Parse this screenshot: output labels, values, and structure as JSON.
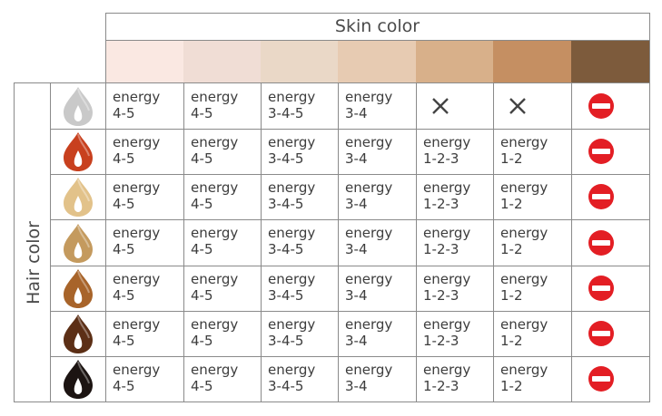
{
  "skin_header": "Skin color",
  "hair_header": "Hair color",
  "skin_colors": [
    "#fae8e2",
    "#f0ddd5",
    "#ead8c7",
    "#e7cbb2",
    "#d8b08a",
    "#c58f62",
    "#7d5b3c"
  ],
  "hair_rows": [
    {
      "hair": "gray",
      "swatch": "#c9c9c9",
      "cells": [
        [
          "energy",
          "4-5"
        ],
        [
          "energy",
          "4-5"
        ],
        [
          "energy",
          "3-4-5"
        ],
        [
          "energy",
          "3-4"
        ],
        "not-suitable",
        "not-suitable",
        "no-entry"
      ]
    },
    {
      "hair": "red",
      "swatch": "#c8401e",
      "cells": [
        [
          "energy",
          "4-5"
        ],
        [
          "energy",
          "4-5"
        ],
        [
          "energy",
          "3-4-5"
        ],
        [
          "energy",
          "3-4"
        ],
        [
          "energy",
          "1-2-3"
        ],
        [
          "energy",
          "1-2"
        ],
        "no-entry"
      ]
    },
    {
      "hair": "blonde",
      "swatch": "#e2c28a",
      "cells": [
        [
          "energy",
          "4-5"
        ],
        [
          "energy",
          "4-5"
        ],
        [
          "energy",
          "3-4-5"
        ],
        [
          "energy",
          "3-4"
        ],
        [
          "energy",
          "1-2-3"
        ],
        [
          "energy",
          "1-2"
        ],
        "no-entry"
      ]
    },
    {
      "hair": "dark-blonde",
      "swatch": "#c49a5e",
      "cells": [
        [
          "energy",
          "4-5"
        ],
        [
          "energy",
          "4-5"
        ],
        [
          "energy",
          "3-4-5"
        ],
        [
          "energy",
          "3-4"
        ],
        [
          "energy",
          "1-2-3"
        ],
        [
          "energy",
          "1-2"
        ],
        "no-entry"
      ]
    },
    {
      "hair": "light-brown",
      "swatch": "#a8642a",
      "cells": [
        [
          "energy",
          "4-5"
        ],
        [
          "energy",
          "4-5"
        ],
        [
          "energy",
          "3-4-5"
        ],
        [
          "energy",
          "3-4"
        ],
        [
          "energy",
          "1-2-3"
        ],
        [
          "energy",
          "1-2"
        ],
        "no-entry"
      ]
    },
    {
      "hair": "brown",
      "swatch": "#5c2f16",
      "cells": [
        [
          "energy",
          "4-5"
        ],
        [
          "energy",
          "4-5"
        ],
        [
          "energy",
          "3-4-5"
        ],
        [
          "energy",
          "3-4"
        ],
        [
          "energy",
          "1-2-3"
        ],
        [
          "energy",
          "1-2"
        ],
        "no-entry"
      ]
    },
    {
      "hair": "black",
      "swatch": "#1c1412",
      "cells": [
        [
          "energy",
          "4-5"
        ],
        [
          "energy",
          "4-5"
        ],
        [
          "energy",
          "3-4-5"
        ],
        [
          "energy",
          "3-4"
        ],
        [
          "energy",
          "1-2-3"
        ],
        [
          "energy",
          "1-2"
        ],
        "no-entry"
      ]
    }
  ],
  "icons": {
    "not_suitable": "cross-icon",
    "no_entry": "no-entry-icon",
    "hair": "hair-drop-icon"
  },
  "colors": {
    "grid": "#8a8a8a",
    "no_entry": "#e31e24",
    "text": "#3d3d3d"
  }
}
